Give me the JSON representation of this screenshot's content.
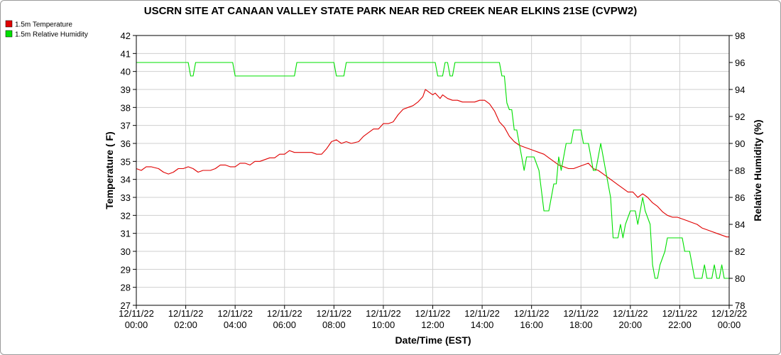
{
  "chart_data": {
    "type": "line",
    "title": "USCRN SITE AT CANAAN VALLEY STATE PARK NEAR RED CREEK NEAR ELKINS 21SE (CVPW2)",
    "xlabel": "Date/Time (EST)",
    "ylabel_left": "Temperature ( F)",
    "ylabel_right": "Relative Humidity (%)",
    "x_range_hours": [
      0,
      24
    ],
    "ylim_left": [
      27,
      42
    ],
    "ylim_right": [
      78,
      98
    ],
    "grid": true,
    "legend_placement": "top-left",
    "x_ticks": [
      {
        "hour": 0,
        "date": "12/11/22",
        "time": "00:00"
      },
      {
        "hour": 2,
        "date": "12/11/22",
        "time": "02:00"
      },
      {
        "hour": 4,
        "date": "12/11/22",
        "time": "04:00"
      },
      {
        "hour": 6,
        "date": "12/11/22",
        "time": "06:00"
      },
      {
        "hour": 8,
        "date": "12/11/22",
        "time": "08:00"
      },
      {
        "hour": 10,
        "date": "12/11/22",
        "time": "10:00"
      },
      {
        "hour": 12,
        "date": "12/11/22",
        "time": "12:00"
      },
      {
        "hour": 14,
        "date": "12/11/22",
        "time": "14:00"
      },
      {
        "hour": 16,
        "date": "12/11/22",
        "time": "16:00"
      },
      {
        "hour": 18,
        "date": "12/11/22",
        "time": "18:00"
      },
      {
        "hour": 20,
        "date": "12/11/22",
        "time": "20:00"
      },
      {
        "hour": 22,
        "date": "12/11/22",
        "time": "22:00"
      },
      {
        "hour": 24,
        "date": "12/12/22",
        "time": "00:00"
      }
    ],
    "y_ticks_left": [
      27,
      28,
      29,
      30,
      31,
      32,
      33,
      34,
      35,
      36,
      37,
      38,
      39,
      40,
      41,
      42
    ],
    "y_ticks_right": [
      78,
      80,
      82,
      84,
      86,
      88,
      90,
      92,
      94,
      96,
      98
    ],
    "series": [
      {
        "name": "1.5m Temperature",
        "color": "#e00000",
        "axis": "left",
        "points": [
          [
            0.0,
            34.6
          ],
          [
            0.2,
            34.5
          ],
          [
            0.4,
            34.7
          ],
          [
            0.6,
            34.7
          ],
          [
            0.9,
            34.6
          ],
          [
            1.1,
            34.4
          ],
          [
            1.3,
            34.3
          ],
          [
            1.5,
            34.4
          ],
          [
            1.7,
            34.6
          ],
          [
            1.9,
            34.6
          ],
          [
            2.1,
            34.7
          ],
          [
            2.3,
            34.6
          ],
          [
            2.5,
            34.4
          ],
          [
            2.7,
            34.5
          ],
          [
            3.0,
            34.5
          ],
          [
            3.2,
            34.6
          ],
          [
            3.4,
            34.8
          ],
          [
            3.6,
            34.8
          ],
          [
            3.8,
            34.7
          ],
          [
            4.0,
            34.7
          ],
          [
            4.2,
            34.9
          ],
          [
            4.4,
            34.9
          ],
          [
            4.6,
            34.8
          ],
          [
            4.8,
            35.0
          ],
          [
            5.0,
            35.0
          ],
          [
            5.2,
            35.1
          ],
          [
            5.4,
            35.2
          ],
          [
            5.6,
            35.2
          ],
          [
            5.8,
            35.4
          ],
          [
            6.0,
            35.4
          ],
          [
            6.2,
            35.6
          ],
          [
            6.4,
            35.5
          ],
          [
            6.6,
            35.5
          ],
          [
            6.9,
            35.5
          ],
          [
            7.1,
            35.5
          ],
          [
            7.3,
            35.4
          ],
          [
            7.5,
            35.4
          ],
          [
            7.7,
            35.7
          ],
          [
            7.9,
            36.1
          ],
          [
            8.1,
            36.2
          ],
          [
            8.3,
            36.0
          ],
          [
            8.5,
            36.1
          ],
          [
            8.7,
            36.0
          ],
          [
            9.0,
            36.1
          ],
          [
            9.2,
            36.4
          ],
          [
            9.4,
            36.6
          ],
          [
            9.6,
            36.8
          ],
          [
            9.8,
            36.8
          ],
          [
            10.0,
            37.1
          ],
          [
            10.2,
            37.1
          ],
          [
            10.4,
            37.2
          ],
          [
            10.6,
            37.6
          ],
          [
            10.8,
            37.9
          ],
          [
            11.0,
            38.0
          ],
          [
            11.2,
            38.1
          ],
          [
            11.4,
            38.3
          ],
          [
            11.6,
            38.6
          ],
          [
            11.7,
            39.0
          ],
          [
            11.9,
            38.8
          ],
          [
            12.0,
            38.7
          ],
          [
            12.1,
            38.8
          ],
          [
            12.3,
            38.5
          ],
          [
            12.4,
            38.7
          ],
          [
            12.6,
            38.5
          ],
          [
            12.8,
            38.4
          ],
          [
            13.0,
            38.4
          ],
          [
            13.2,
            38.3
          ],
          [
            13.5,
            38.3
          ],
          [
            13.7,
            38.3
          ],
          [
            13.9,
            38.4
          ],
          [
            14.1,
            38.4
          ],
          [
            14.3,
            38.2
          ],
          [
            14.5,
            37.8
          ],
          [
            14.7,
            37.2
          ],
          [
            14.9,
            36.9
          ],
          [
            15.1,
            36.4
          ],
          [
            15.3,
            36.1
          ],
          [
            15.5,
            35.9
          ],
          [
            15.7,
            35.8
          ],
          [
            15.9,
            35.7
          ],
          [
            16.1,
            35.6
          ],
          [
            16.3,
            35.5
          ],
          [
            16.5,
            35.4
          ],
          [
            16.7,
            35.2
          ],
          [
            16.9,
            35.0
          ],
          [
            17.1,
            34.8
          ],
          [
            17.3,
            34.7
          ],
          [
            17.5,
            34.6
          ],
          [
            17.7,
            34.6
          ],
          [
            17.9,
            34.7
          ],
          [
            18.1,
            34.8
          ],
          [
            18.3,
            34.9
          ],
          [
            18.5,
            34.6
          ],
          [
            18.7,
            34.5
          ],
          [
            18.9,
            34.3
          ],
          [
            19.1,
            34.1
          ],
          [
            19.3,
            33.9
          ],
          [
            19.5,
            33.7
          ],
          [
            19.7,
            33.5
          ],
          [
            19.9,
            33.3
          ],
          [
            20.1,
            33.3
          ],
          [
            20.3,
            33.0
          ],
          [
            20.5,
            33.2
          ],
          [
            20.7,
            33.0
          ],
          [
            20.9,
            32.7
          ],
          [
            21.1,
            32.5
          ],
          [
            21.3,
            32.2
          ],
          [
            21.5,
            32.0
          ],
          [
            21.7,
            31.9
          ],
          [
            21.9,
            31.9
          ],
          [
            22.1,
            31.8
          ],
          [
            22.3,
            31.7
          ],
          [
            22.5,
            31.6
          ],
          [
            22.7,
            31.5
          ],
          [
            22.9,
            31.3
          ],
          [
            23.1,
            31.2
          ],
          [
            23.3,
            31.1
          ],
          [
            23.5,
            31.0
          ],
          [
            23.7,
            30.9
          ],
          [
            23.9,
            30.8
          ],
          [
            24.0,
            30.8
          ]
        ]
      },
      {
        "name": "1.5m Relative Humidity",
        "color": "#00e000",
        "axis": "right",
        "points": [
          [
            0.0,
            96
          ],
          [
            2.1,
            96
          ],
          [
            2.2,
            95
          ],
          [
            2.3,
            95
          ],
          [
            2.4,
            96
          ],
          [
            3.9,
            96
          ],
          [
            4.0,
            95
          ],
          [
            6.4,
            95
          ],
          [
            6.5,
            96
          ],
          [
            8.0,
            96
          ],
          [
            8.1,
            95
          ],
          [
            8.4,
            95
          ],
          [
            8.5,
            96
          ],
          [
            12.1,
            96
          ],
          [
            12.2,
            95
          ],
          [
            12.4,
            95
          ],
          [
            12.5,
            96
          ],
          [
            12.6,
            96
          ],
          [
            12.7,
            95
          ],
          [
            12.8,
            95
          ],
          [
            12.9,
            96
          ],
          [
            14.7,
            96
          ],
          [
            14.8,
            95
          ],
          [
            14.9,
            95
          ],
          [
            15.0,
            93
          ],
          [
            15.1,
            92.5
          ],
          [
            15.2,
            92.5
          ],
          [
            15.3,
            91
          ],
          [
            15.4,
            91
          ],
          [
            15.5,
            90
          ],
          [
            15.6,
            89
          ],
          [
            15.7,
            88
          ],
          [
            15.8,
            89
          ],
          [
            16.1,
            89
          ],
          [
            16.3,
            88
          ],
          [
            16.5,
            85
          ],
          [
            16.7,
            85
          ],
          [
            16.9,
            87
          ],
          [
            17.0,
            87
          ],
          [
            17.1,
            89
          ],
          [
            17.2,
            88
          ],
          [
            17.4,
            90
          ],
          [
            17.6,
            90
          ],
          [
            17.7,
            91
          ],
          [
            18.0,
            91
          ],
          [
            18.1,
            90
          ],
          [
            18.3,
            90
          ],
          [
            18.4,
            89
          ],
          [
            18.5,
            88
          ],
          [
            18.6,
            88
          ],
          [
            18.7,
            89
          ],
          [
            18.8,
            90
          ],
          [
            19.0,
            88
          ],
          [
            19.2,
            86
          ],
          [
            19.3,
            83
          ],
          [
            19.5,
            83
          ],
          [
            19.6,
            84
          ],
          [
            19.7,
            83
          ],
          [
            19.8,
            84
          ],
          [
            20.0,
            85
          ],
          [
            20.2,
            85
          ],
          [
            20.3,
            84
          ],
          [
            20.5,
            86
          ],
          [
            20.6,
            85
          ],
          [
            20.8,
            84
          ],
          [
            20.9,
            81
          ],
          [
            21.0,
            80
          ],
          [
            21.1,
            80
          ],
          [
            21.2,
            81
          ],
          [
            21.4,
            82
          ],
          [
            21.5,
            83
          ],
          [
            22.1,
            83
          ],
          [
            22.2,
            82
          ],
          [
            22.4,
            82
          ],
          [
            22.5,
            81
          ],
          [
            22.6,
            80
          ],
          [
            22.9,
            80
          ],
          [
            23.0,
            81
          ],
          [
            23.1,
            80
          ],
          [
            23.3,
            80
          ],
          [
            23.4,
            81
          ],
          [
            23.5,
            80
          ],
          [
            23.6,
            80
          ],
          [
            23.7,
            81
          ],
          [
            23.8,
            80
          ],
          [
            24.0,
            80
          ]
        ]
      }
    ]
  }
}
